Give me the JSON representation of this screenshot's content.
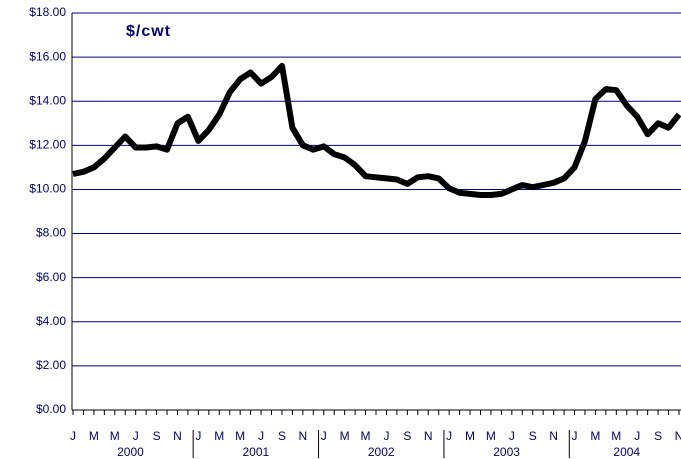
{
  "chart_data": {
    "type": "line",
    "annotation": "$/cwt",
    "categories": [
      "J",
      null,
      "M",
      null,
      "M",
      null,
      "J",
      null,
      "S",
      null,
      "N",
      null,
      "J",
      null,
      "M",
      null,
      "M",
      null,
      "J",
      null,
      "S",
      null,
      "N",
      null,
      "J",
      null,
      "M",
      null,
      "M",
      null,
      "J",
      null,
      "S",
      null,
      "N",
      null,
      "J",
      null,
      "M",
      null,
      "M",
      null,
      "J",
      null,
      "S",
      null,
      "N",
      null,
      "J",
      null,
      "M",
      null,
      "M",
      null,
      "J",
      null,
      "S",
      null,
      "N"
    ],
    "years": [
      "2000",
      "2001",
      "2002",
      "2003",
      "2004"
    ],
    "values": [
      10.7,
      10.8,
      11.0,
      11.4,
      11.9,
      12.4,
      11.9,
      11.9,
      11.95,
      11.8,
      13.0,
      13.3,
      12.2,
      12.7,
      13.4,
      14.4,
      15.0,
      15.3,
      14.8,
      15.1,
      15.6,
      12.8,
      12.0,
      11.8,
      11.95,
      11.6,
      11.45,
      11.1,
      10.6,
      10.55,
      10.5,
      10.45,
      10.25,
      10.55,
      10.6,
      10.5,
      10.05,
      9.85,
      9.8,
      9.75,
      9.75,
      9.8,
      10.0,
      10.2,
      10.1,
      10.2,
      10.3,
      10.5,
      11.0,
      12.2,
      14.1,
      14.55,
      14.5,
      13.8,
      13.3,
      12.5,
      13.0,
      12.8,
      13.4
    ],
    "color": "#000000",
    "grid_color": "#000080",
    "ylim": [
      0,
      18
    ],
    "yticks": [
      {
        "value": 0,
        "label": "$0.00"
      },
      {
        "value": 2,
        "label": "$2.00"
      },
      {
        "value": 4,
        "label": "$4.00"
      },
      {
        "value": 6,
        "label": "$6.00"
      },
      {
        "value": 8,
        "label": "$8.00"
      },
      {
        "value": 10,
        "label": "$10.00"
      },
      {
        "value": 12,
        "label": "$12.00"
      },
      {
        "value": 14,
        "label": "$14.00"
      },
      {
        "value": 16,
        "label": "$16.00"
      },
      {
        "value": 18,
        "label": "$18.00"
      }
    ],
    "grid": true
  }
}
